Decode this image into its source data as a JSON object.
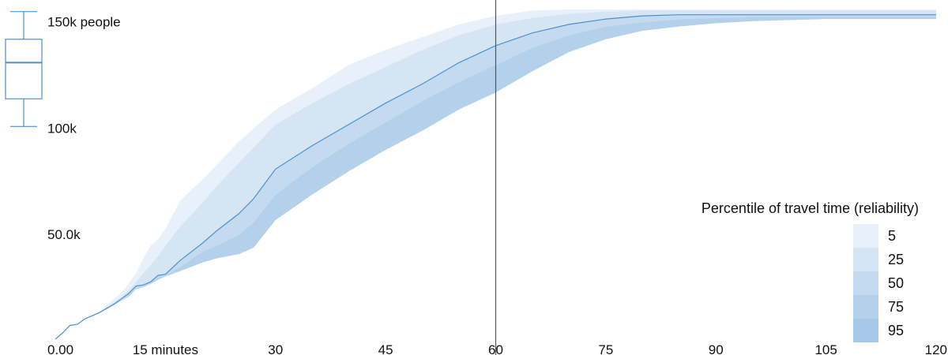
{
  "chart_data": {
    "type": "area",
    "xlabel": "",
    "ylabel": "",
    "xlim": [
      0,
      120
    ],
    "ylim": [
      0,
      155000
    ],
    "x_ticks": [
      {
        "value": 0,
        "label": "0.00"
      },
      {
        "value": 15,
        "label": "15 minutes"
      },
      {
        "value": 30,
        "label": "30"
      },
      {
        "value": 45,
        "label": "45"
      },
      {
        "value": 60,
        "label": "60"
      },
      {
        "value": 75,
        "label": "75"
      },
      {
        "value": 90,
        "label": "90"
      },
      {
        "value": 105,
        "label": "105"
      },
      {
        "value": 120,
        "label": "120"
      }
    ],
    "y_ticks": [
      {
        "value": 50000,
        "label": "50.0k"
      },
      {
        "value": 100000,
        "label": "100k"
      },
      {
        "value": 150000,
        "label": "150k people"
      }
    ],
    "cutoff_minute": 60,
    "legend": {
      "title": "Percentile of travel time (reliability)",
      "position": "bottom-right",
      "entries": [
        {
          "label": "5",
          "color": "#e8f0f9"
        },
        {
          "label": "25",
          "color": "#d6e5f4"
        },
        {
          "label": "50",
          "color": "#c4daef"
        },
        {
          "label": "75",
          "color": "#b4d1ec"
        },
        {
          "label": "95",
          "color": "#a6c9e9"
        }
      ]
    },
    "band_colors": [
      "#e8f0f9",
      "#d6e5f4",
      "#c4daef",
      "#b4d1ec"
    ],
    "median_color": "#4a90d0",
    "boxplot": {
      "min": 100000,
      "q1": 113000,
      "median": 130000,
      "q3": 141000,
      "max": 154000,
      "color": "#4a90d0"
    },
    "x": [
      0,
      1,
      2,
      3,
      4,
      5,
      6,
      7,
      8,
      9,
      10,
      11,
      12,
      13,
      14,
      15,
      17,
      20,
      22,
      25,
      27,
      30,
      35,
      40,
      45,
      50,
      55,
      60,
      65,
      70,
      75,
      80,
      85,
      90,
      95,
      100,
      105,
      110,
      115,
      120
    ],
    "series": [
      {
        "values": [
          0,
          3000,
          6500,
          7000,
          9500,
          11000,
          13000,
          16000,
          19000,
          22000,
          26000,
          31000,
          38000,
          44000,
          47000,
          52000,
          65000,
          75000,
          82000,
          93000,
          99000,
          108000,
          118000,
          129000,
          136000,
          142000,
          148000,
          152000,
          154500,
          155000,
          155000,
          155000,
          155000,
          155000,
          155000,
          155000,
          155000,
          155000,
          155000,
          155000
        ]
      },
      {
        "values": [
          0,
          3000,
          6500,
          7000,
          9500,
          11000,
          12500,
          15000,
          17500,
          20000,
          23000,
          27000,
          31000,
          35000,
          39000,
          44000,
          53000,
          64000,
          72000,
          83000,
          90000,
          101000,
          111000,
          120000,
          128000,
          136000,
          143000,
          148000,
          151000,
          153000,
          154000,
          154500,
          154500,
          154500,
          154500,
          154500,
          154500,
          154500,
          154500,
          154500
        ]
      },
      {
        "values": [
          0,
          3000,
          6500,
          7000,
          9500,
          11000,
          12500,
          14500,
          16500,
          19000,
          21500,
          25000,
          25500,
          27000,
          30000,
          30500,
          37000,
          45000,
          51000,
          59000,
          66000,
          80000,
          91000,
          101000,
          111000,
          120000,
          130000,
          138000,
          144000,
          148000,
          150500,
          152000,
          152500,
          152500,
          152500,
          152500,
          152500,
          152500,
          152500,
          152500
        ]
      },
      {
        "values": [
          0,
          3000,
          6500,
          7000,
          9500,
          11000,
          12500,
          14000,
          16000,
          18000,
          20500,
          24000,
          25000,
          26500,
          29000,
          30000,
          34000,
          41000,
          44000,
          49000,
          55000,
          68000,
          81000,
          92000,
          102000,
          112000,
          121000,
          129000,
          137000,
          143000,
          147000,
          149000,
          150500,
          151000,
          151500,
          151500,
          151500,
          151500,
          151500,
          151500
        ]
      },
      {
        "values": [
          0,
          3000,
          6500,
          7000,
          9500,
          11000,
          12500,
          14000,
          16000,
          18000,
          20000,
          23500,
          24500,
          26000,
          28000,
          29500,
          32000,
          36000,
          38000,
          40000,
          43000,
          56000,
          68000,
          79000,
          89000,
          98000,
          108000,
          116000,
          126000,
          135000,
          141000,
          145000,
          147000,
          148500,
          149500,
          150000,
          150500,
          150500,
          150500,
          150500
        ]
      }
    ]
  }
}
